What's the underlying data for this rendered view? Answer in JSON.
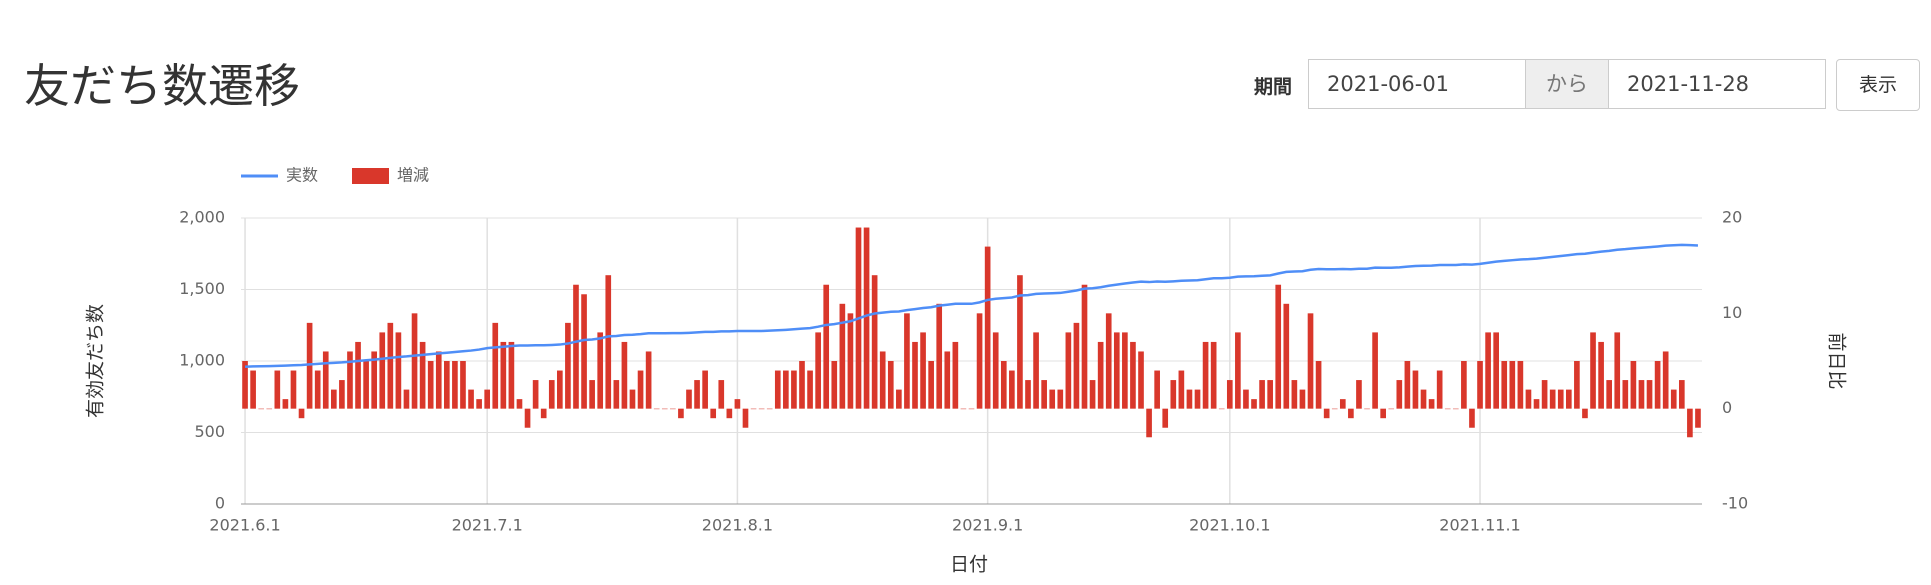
{
  "header": {
    "title": "友だち数遷移"
  },
  "filter": {
    "label": "期間",
    "start": "2021-06-01",
    "separator": "から",
    "end": "2021-11-28",
    "button": "表示"
  },
  "chart_data": {
    "type": "combo",
    "x_label": "日付",
    "y_label": "有効友だち数",
    "y2_label": "前日比",
    "categories": [
      "2021.6.1",
      null,
      null,
      null,
      null,
      null,
      null,
      null,
      null,
      null,
      null,
      null,
      null,
      null,
      null,
      null,
      null,
      null,
      null,
      null,
      null,
      null,
      null,
      null,
      null,
      null,
      null,
      null,
      null,
      null,
      "2021.7.1",
      null,
      null,
      null,
      null,
      null,
      null,
      null,
      null,
      null,
      null,
      null,
      null,
      null,
      null,
      null,
      null,
      null,
      null,
      null,
      null,
      null,
      null,
      null,
      null,
      null,
      null,
      null,
      null,
      null,
      null,
      "2021.8.1",
      null,
      null,
      null,
      null,
      null,
      null,
      null,
      null,
      null,
      null,
      null,
      null,
      null,
      null,
      null,
      null,
      null,
      null,
      null,
      null,
      null,
      null,
      null,
      null,
      null,
      null,
      null,
      null,
      null,
      null,
      "2021.9.1",
      null,
      null,
      null,
      null,
      null,
      null,
      null,
      null,
      null,
      null,
      null,
      null,
      null,
      null,
      null,
      null,
      null,
      null,
      null,
      null,
      null,
      null,
      null,
      null,
      null,
      null,
      null,
      null,
      null,
      "2021.10.1",
      null,
      null,
      null,
      null,
      null,
      null,
      null,
      null,
      null,
      null,
      null,
      null,
      null,
      null,
      null,
      null,
      null,
      null,
      null,
      null,
      null,
      null,
      null,
      null,
      null,
      null,
      null,
      null,
      null,
      null,
      "2021.11.1",
      null,
      null,
      null,
      null,
      null,
      null,
      null,
      null,
      null,
      null,
      null,
      null,
      null,
      null,
      null,
      null,
      null,
      null,
      null,
      null,
      null,
      null,
      null,
      null,
      null,
      null,
      null
    ],
    "series": [
      {
        "name": "実数",
        "type": "line",
        "color": "#4f8ef7",
        "values": [
          960,
          962,
          963,
          964,
          966,
          968,
          970,
          972,
          976,
          980,
          984,
          987,
          990,
          995,
          1000,
          1005,
          1010,
          1016,
          1022,
          1028,
          1032,
          1038,
          1043,
          1048,
          1053,
          1058,
          1063,
          1068,
          1073,
          1080,
          1090,
          1095,
          1100,
          1105,
          1108,
          1108,
          1110,
          1110,
          1112,
          1115,
          1122,
          1135,
          1147,
          1150,
          1158,
          1172,
          1175,
          1182,
          1184,
          1188,
          1194,
          1194,
          1194,
          1195,
          1195,
          1197,
          1200,
          1204,
          1204,
          1207,
          1207,
          1210,
          1210,
          1210,
          1210,
          1212,
          1215,
          1218,
          1222,
          1226,
          1230,
          1240,
          1252,
          1258,
          1268,
          1278,
          1298,
          1318,
          1332,
          1338,
          1344,
          1346,
          1356,
          1363,
          1371,
          1376,
          1387,
          1393,
          1400,
          1400,
          1400,
          1410,
          1427,
          1435,
          1440,
          1444,
          1458,
          1461,
          1469,
          1472,
          1474,
          1476,
          1484,
          1493,
          1506,
          1509,
          1516,
          1526,
          1534,
          1542,
          1549,
          1555,
          1552,
          1556,
          1554,
          1557,
          1561,
          1563,
          1565,
          1572,
          1579,
          1579,
          1582,
          1590,
          1592,
          1593,
          1596,
          1599,
          1612,
          1623,
          1626,
          1628,
          1638,
          1643,
          1642,
          1642,
          1643,
          1642,
          1645,
          1645,
          1653,
          1652,
          1652,
          1655,
          1660,
          1664,
          1666,
          1667,
          1671,
          1671,
          1671,
          1676,
          1674,
          1679,
          1687,
          1695,
          1700,
          1705,
          1710,
          1712,
          1716,
          1722,
          1728,
          1734,
          1740,
          1747,
          1750,
          1758,
          1765,
          1770,
          1778,
          1782,
          1788,
          1792,
          1796,
          1801,
          1807,
          1809,
          1812,
          1810,
          1808
        ]
      },
      {
        "name": "増減",
        "type": "bar",
        "axis": "y2",
        "color": "#d9372b",
        "values": [
          5,
          4,
          0,
          0,
          4,
          1,
          4,
          -1,
          9,
          4,
          6,
          2,
          3,
          6,
          7,
          5,
          6,
          8,
          9,
          8,
          2,
          10,
          7,
          5,
          6,
          5,
          5,
          5,
          2,
          1,
          2,
          9,
          7,
          7,
          1,
          -2,
          3,
          -1,
          3,
          4,
          9,
          13,
          12,
          3,
          8,
          14,
          3,
          7,
          2,
          4,
          6,
          0,
          0,
          0,
          -1,
          2,
          3,
          4,
          -1,
          3,
          -1,
          1,
          -2,
          0,
          0,
          0,
          4,
          4,
          4,
          5,
          4,
          8,
          13,
          5,
          11,
          10,
          19,
          19,
          14,
          6,
          5,
          2,
          10,
          7,
          8,
          5,
          11,
          6,
          7,
          0,
          0,
          10,
          17,
          8,
          5,
          4,
          14,
          3,
          8,
          3,
          2,
          2,
          8,
          9,
          13,
          3,
          7,
          10,
          8,
          8,
          7,
          6,
          -3,
          4,
          -2,
          3,
          4,
          2,
          2,
          7,
          7,
          0,
          3,
          8,
          2,
          1,
          3,
          3,
          13,
          11,
          3,
          2,
          10,
          5,
          -1,
          0,
          1,
          -1,
          3,
          0,
          8,
          -1,
          0,
          3,
          5,
          4,
          2,
          1,
          4,
          0,
          0,
          5,
          -2,
          5,
          8,
          8,
          5,
          5,
          5,
          2,
          1,
          3,
          2,
          2,
          2,
          5,
          -1,
          8,
          7,
          3,
          8,
          3,
          5,
          3,
          3,
          5,
          6,
          2,
          3,
          -3,
          -2
        ]
      }
    ],
    "ylim": [
      0,
      2000
    ],
    "yticks": [
      0,
      500,
      {
        "value": 1000,
        "label": "1,000"
      },
      {
        "value": 1500,
        "label": "1,500"
      },
      {
        "value": 2000,
        "label": "2,000"
      }
    ],
    "y2lim": [
      -10,
      20
    ],
    "y2ticks": [
      -10,
      0,
      10,
      20
    ],
    "grid": true,
    "legend": "top-left"
  }
}
